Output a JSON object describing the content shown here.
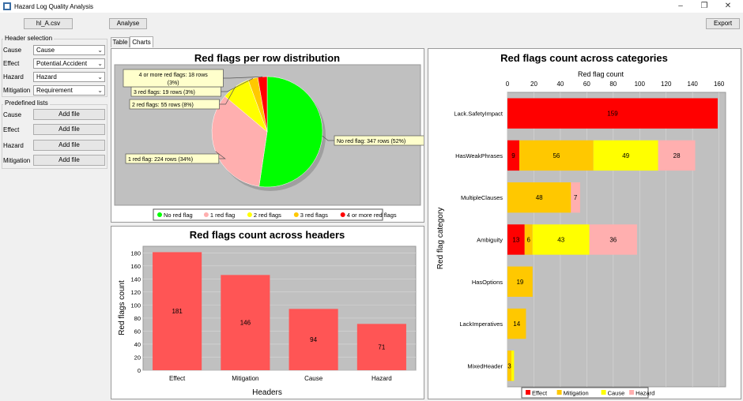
{
  "window": {
    "title": "Hazard Log Quality Analysis"
  },
  "toolbar": {
    "file_button": "hl_A.csv",
    "analyse_button": "Analyse",
    "export_button": "Export"
  },
  "header_selection": {
    "title": "Header selection",
    "rows": [
      {
        "label": "Cause",
        "value": "Cause"
      },
      {
        "label": "Effect",
        "value": "Potential.Accident"
      },
      {
        "label": "Hazard",
        "value": "Hazard"
      },
      {
        "label": "Mitigation",
        "value": "Requirement"
      }
    ]
  },
  "predefined_lists": {
    "title": "Predefined lists",
    "rows": [
      {
        "label": "Cause",
        "button": "Add file"
      },
      {
        "label": "Effect",
        "button": "Add file"
      },
      {
        "label": "Hazard",
        "button": "Add file"
      },
      {
        "label": "Mitigation",
        "button": "Add file"
      }
    ]
  },
  "tabs": [
    {
      "label": "Table"
    },
    {
      "label": "Charts"
    }
  ],
  "colors": {
    "red": "#ff0000",
    "pink": "#ffafaf",
    "yellow": "#ffff00",
    "orange": "#ffc800",
    "green": "#00ff00",
    "bar": "#ff5555",
    "plot_bg": "#c0c0c0"
  },
  "chart_data": [
    {
      "type": "pie",
      "title": "Red flags per row distribution",
      "slices": [
        {
          "name": "No red flag",
          "value": 347,
          "label": "No red flag: 347 rows (52%)",
          "color": "#00ff00"
        },
        {
          "name": "1 red flag",
          "value": 224,
          "label": "1 red flag: 224 rows (34%)",
          "color": "#ffafaf"
        },
        {
          "name": "2 red flags",
          "value": 55,
          "label": "2 red flags: 55 rows (8%)",
          "color": "#ffff00"
        },
        {
          "name": "3 red flags",
          "value": 19,
          "label": "3 red flags: 19 rows (3%)",
          "color": "#ffc800"
        },
        {
          "name": "4 or more red flags",
          "value": 18,
          "label": "4 or more red flags: 18 rows (3%)",
          "color": "#ff0000"
        }
      ],
      "legend": "bottom"
    },
    {
      "type": "bar",
      "title": "Red flags count across headers",
      "xlabel": "Headers",
      "ylabel": "Red flags count",
      "categories": [
        "Effect",
        "Mitigation",
        "Cause",
        "Hazard"
      ],
      "values": [
        181,
        146,
        94,
        71
      ],
      "ylim": [
        0,
        190
      ],
      "yticks": [
        0,
        20,
        40,
        60,
        80,
        100,
        120,
        140,
        160,
        180
      ]
    },
    {
      "type": "bar",
      "orientation": "horizontal-stacked",
      "title": "Red flags count across categories",
      "xlabel": "Red flag count",
      "ylabel": "Red flag category",
      "categories": [
        "Lack.SafetyImpact",
        "HasWeakPhrases",
        "MultipleClauses",
        "Ambiguity",
        "HasOptions",
        "LackImperatives",
        "MixedHeader"
      ],
      "xlim": [
        0,
        165
      ],
      "xticks": [
        0,
        20,
        40,
        60,
        80,
        100,
        120,
        140,
        160
      ],
      "series": [
        {
          "name": "Effect",
          "color": "#ff0000",
          "values": [
            159,
            9,
            0,
            13,
            0,
            0,
            0
          ]
        },
        {
          "name": "Mitigation",
          "color": "#ffc800",
          "values": [
            0,
            56,
            48,
            6,
            19,
            14,
            3
          ]
        },
        {
          "name": "Cause",
          "color": "#ffff00",
          "values": [
            0,
            49,
            0,
            43,
            0,
            0,
            2
          ]
        },
        {
          "name": "Hazard",
          "color": "#ffafaf",
          "values": [
            0,
            28,
            7,
            36,
            0,
            0,
            0
          ]
        }
      ],
      "value_labels": [
        [
          "159",
          "",
          "",
          ""
        ],
        [
          "9",
          "56",
          "49",
          "28"
        ],
        [
          "",
          "48",
          "",
          "7"
        ],
        [
          "13",
          "6",
          "43",
          "36"
        ],
        [
          "",
          "19",
          "",
          ""
        ],
        [
          "",
          "14",
          "",
          ""
        ],
        [
          "",
          "3",
          "",
          ""
        ]
      ],
      "legend": "bottom"
    }
  ]
}
